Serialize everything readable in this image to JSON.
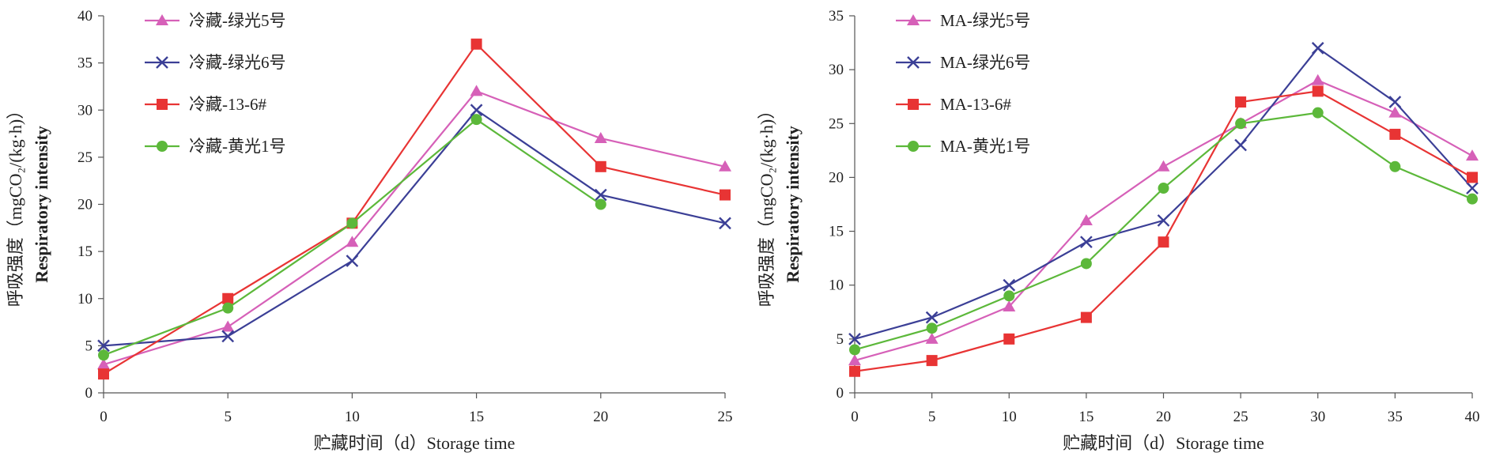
{
  "chart_data": [
    {
      "type": "line",
      "x": [
        0,
        5,
        10,
        15,
        20,
        25
      ],
      "xlim": [
        0,
        25
      ],
      "ylim": [
        0,
        40
      ],
      "xticks": [
        "0",
        "5",
        "10",
        "15",
        "20",
        "25"
      ],
      "yticks": [
        "0",
        "5",
        "10",
        "15",
        "20",
        "25",
        "30",
        "35",
        "40"
      ],
      "xlabel": "贮藏时间（d）Storage time",
      "ylabel_cn": "呼吸强度（mgCO₂/(kg·h)）",
      "ylabel_en": "Respiratory intensity",
      "legend_position": "top-left",
      "grid": false,
      "series": [
        {
          "name": "冷藏-绿光5号",
          "color": "#d660b8",
          "marker": "triangle",
          "values": [
            3,
            7,
            16,
            32,
            27,
            24
          ]
        },
        {
          "name": "冷藏-绿光6号",
          "color": "#3b3f96",
          "marker": "x",
          "values": [
            5,
            6,
            14,
            30,
            21,
            18
          ]
        },
        {
          "name": "冷藏-13-6#",
          "color": "#e83434",
          "marker": "square",
          "values": [
            2,
            10,
            18,
            37,
            24,
            21
          ]
        },
        {
          "name": "冷藏-黄光1号",
          "color": "#5cb83a",
          "marker": "circle",
          "values": [
            4,
            9,
            18,
            29,
            20,
            null
          ]
        }
      ]
    },
    {
      "type": "line",
      "x": [
        0,
        5,
        10,
        15,
        20,
        25,
        30,
        35,
        40
      ],
      "xlim": [
        0,
        40
      ],
      "ylim": [
        0,
        35
      ],
      "xticks": [
        "0",
        "5",
        "10",
        "15",
        "20",
        "25",
        "30",
        "35",
        "40"
      ],
      "yticks": [
        "0",
        "5",
        "10",
        "15",
        "20",
        "25",
        "30",
        "35"
      ],
      "xlabel": "贮藏时间（d）Storage time",
      "ylabel_cn": "呼吸强度（mgCO₂/(kg·h)）",
      "ylabel_en": "Respiratory intensity",
      "legend_position": "top-left",
      "grid": false,
      "series": [
        {
          "name": "MA-绿光5号",
          "color": "#d660b8",
          "marker": "triangle",
          "values": [
            3,
            5,
            8,
            16,
            21,
            25,
            29,
            26,
            22
          ]
        },
        {
          "name": "MA-绿光6号",
          "color": "#3b3f96",
          "marker": "x",
          "values": [
            5,
            7,
            10,
            14,
            16,
            23,
            32,
            27,
            19
          ]
        },
        {
          "name": "MA-13-6#",
          "color": "#e83434",
          "marker": "square",
          "values": [
            2,
            3,
            5,
            7,
            14,
            27,
            28,
            24,
            20
          ]
        },
        {
          "name": "MA-黄光1号",
          "color": "#5cb83a",
          "marker": "circle",
          "values": [
            4,
            6,
            9,
            12,
            19,
            25,
            26,
            21,
            18
          ]
        }
      ]
    }
  ]
}
